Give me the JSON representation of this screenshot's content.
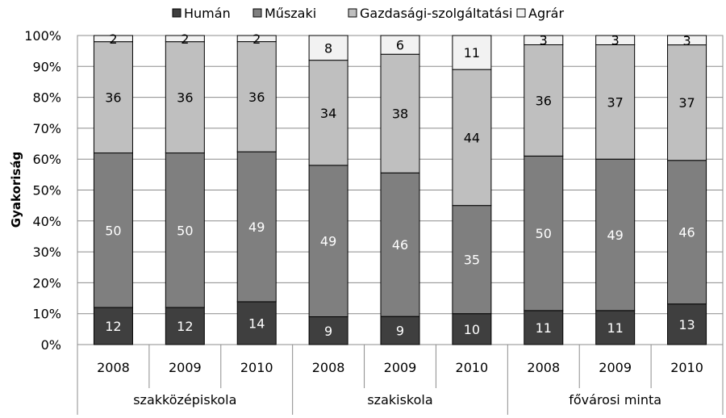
{
  "chart_data": {
    "type": "bar",
    "stacked": true,
    "percent": true,
    "title": "",
    "ylabel": "Gyakoriság",
    "xlabel": "",
    "ylim": [
      0,
      100
    ],
    "yticks": [
      "0%",
      "10%",
      "20%",
      "30%",
      "40%",
      "50%",
      "60%",
      "70%",
      "80%",
      "90%",
      "100%"
    ],
    "grid": true,
    "legend_position": "top",
    "groups": [
      {
        "name": "szakközépiskola",
        "categories": [
          "2008",
          "2009",
          "2010"
        ]
      },
      {
        "name": "szakiskola",
        "categories": [
          "2008",
          "2009",
          "2010"
        ]
      },
      {
        "name": "fővárosi minta",
        "categories": [
          "2008",
          "2009",
          "2010"
        ]
      }
    ],
    "series": [
      {
        "name": "Humán",
        "color": "#3f3f3f",
        "label_color": "#ffffff",
        "values": [
          12,
          12,
          14,
          9,
          9,
          10,
          11,
          11,
          13
        ]
      },
      {
        "name": "Műszaki",
        "color": "#7f7f7f",
        "label_color": "#ffffff",
        "values": [
          50,
          50,
          49,
          49,
          46,
          35,
          50,
          49,
          46
        ]
      },
      {
        "name": "Gazdasági-szolgáltatási",
        "color": "#bfbfbf",
        "label_color": "#000000",
        "values": [
          36,
          36,
          36,
          34,
          38,
          44,
          36,
          37,
          37
        ]
      },
      {
        "name": "Agrár",
        "color": "#f2f2f2",
        "label_color": "#000000",
        "values": [
          2,
          2,
          2,
          8,
          6,
          11,
          3,
          3,
          3
        ]
      }
    ]
  }
}
